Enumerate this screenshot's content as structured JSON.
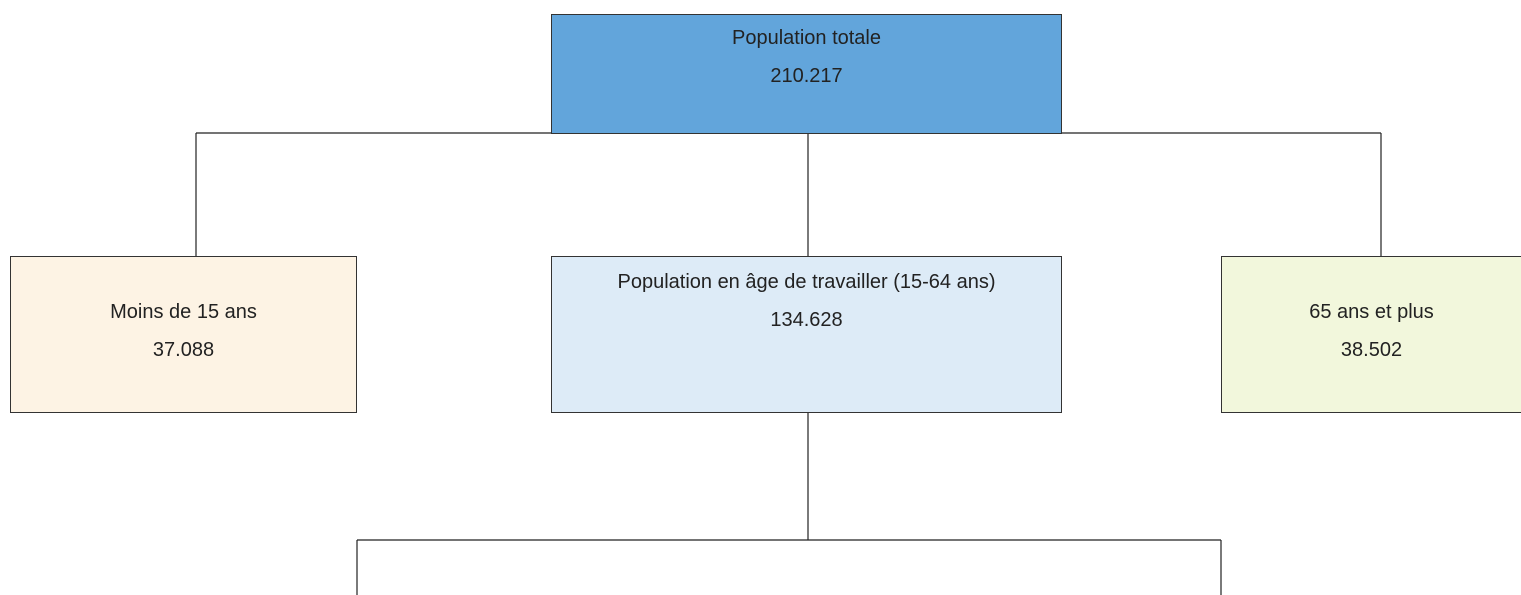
{
  "nodes": [
    {
      "label": "Population totale",
      "value": "210.217"
    },
    {
      "label": "Moins de 15 ans",
      "value": "37.088"
    },
    {
      "label": "Population en âge de travailler (15-64 ans)",
      "value": "134.628"
    },
    {
      "label": "65 ans et plus",
      "value": "38.502"
    }
  ]
}
